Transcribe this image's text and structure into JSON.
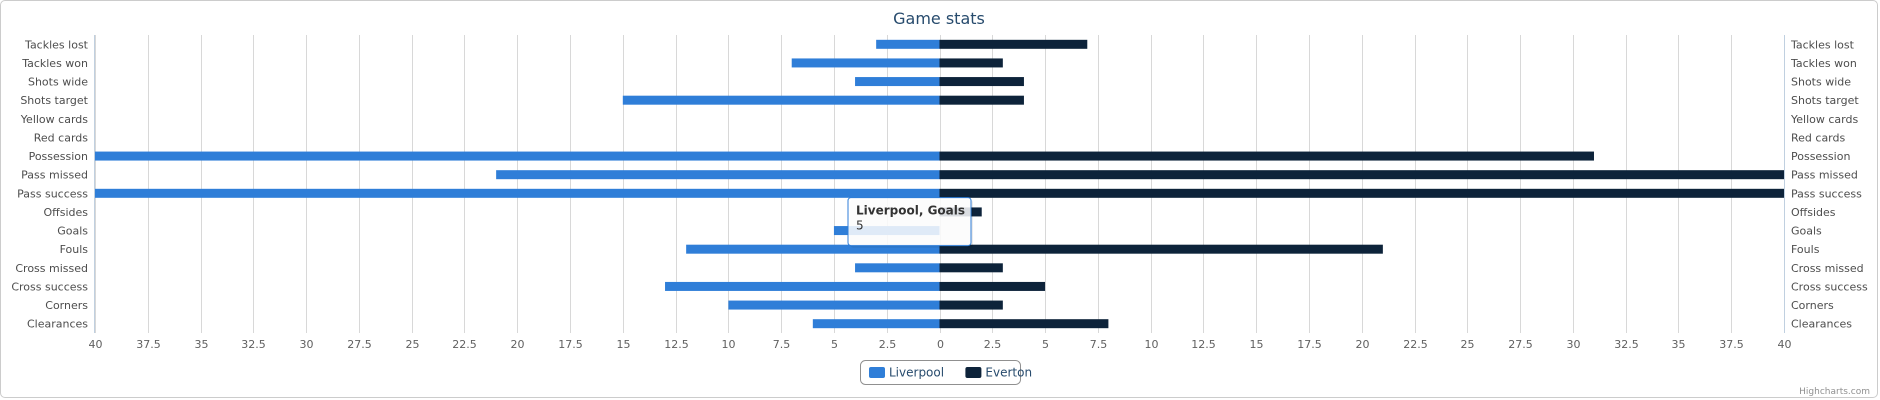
{
  "chart_data": {
    "type": "bar",
    "orientation": "horizontal-diverging",
    "title": "Game stats",
    "categories": [
      "Tackles lost",
      "Tackles won",
      "Shots wide",
      "Shots target",
      "Yellow cards",
      "Red cards",
      "Possession",
      "Pass missed",
      "Pass success",
      "Offsides",
      "Goals",
      "Fouls",
      "Cross missed",
      "Cross success",
      "Corners",
      "Clearances"
    ],
    "series": [
      {
        "name": "Liverpool",
        "color": "#2f7ed8",
        "side": "left",
        "values": [
          3,
          7,
          4,
          15,
          0,
          0,
          40,
          21,
          40,
          0,
          5,
          12,
          4,
          13,
          10,
          6
        ]
      },
      {
        "name": "Everton",
        "color": "#0d233a",
        "side": "right",
        "values": [
          7,
          3,
          4,
          4,
          0,
          0,
          31,
          40,
          40,
          2,
          0,
          21,
          3,
          5,
          3,
          8
        ]
      }
    ],
    "xlim": [
      -40,
      40
    ],
    "tick_step": 2.5,
    "tick_labels": [
      "40",
      "37.5",
      "35",
      "32.5",
      "30",
      "27.5",
      "25",
      "22.5",
      "20",
      "17.5",
      "15",
      "12.5",
      "10",
      "7.5",
      "5",
      "2.5",
      "0",
      "2.5",
      "5",
      "7.5",
      "10",
      "12.5",
      "15",
      "17.5",
      "20",
      "22.5",
      "25",
      "27.5",
      "30",
      "32.5",
      "35",
      "37.5",
      "40"
    ],
    "grid": true,
    "legend_position": "bottom-center",
    "tooltip": {
      "title": "Liverpool, Goals",
      "value": "5",
      "category_index": 10,
      "series_index": 0
    }
  },
  "credits": "Highcharts.com"
}
